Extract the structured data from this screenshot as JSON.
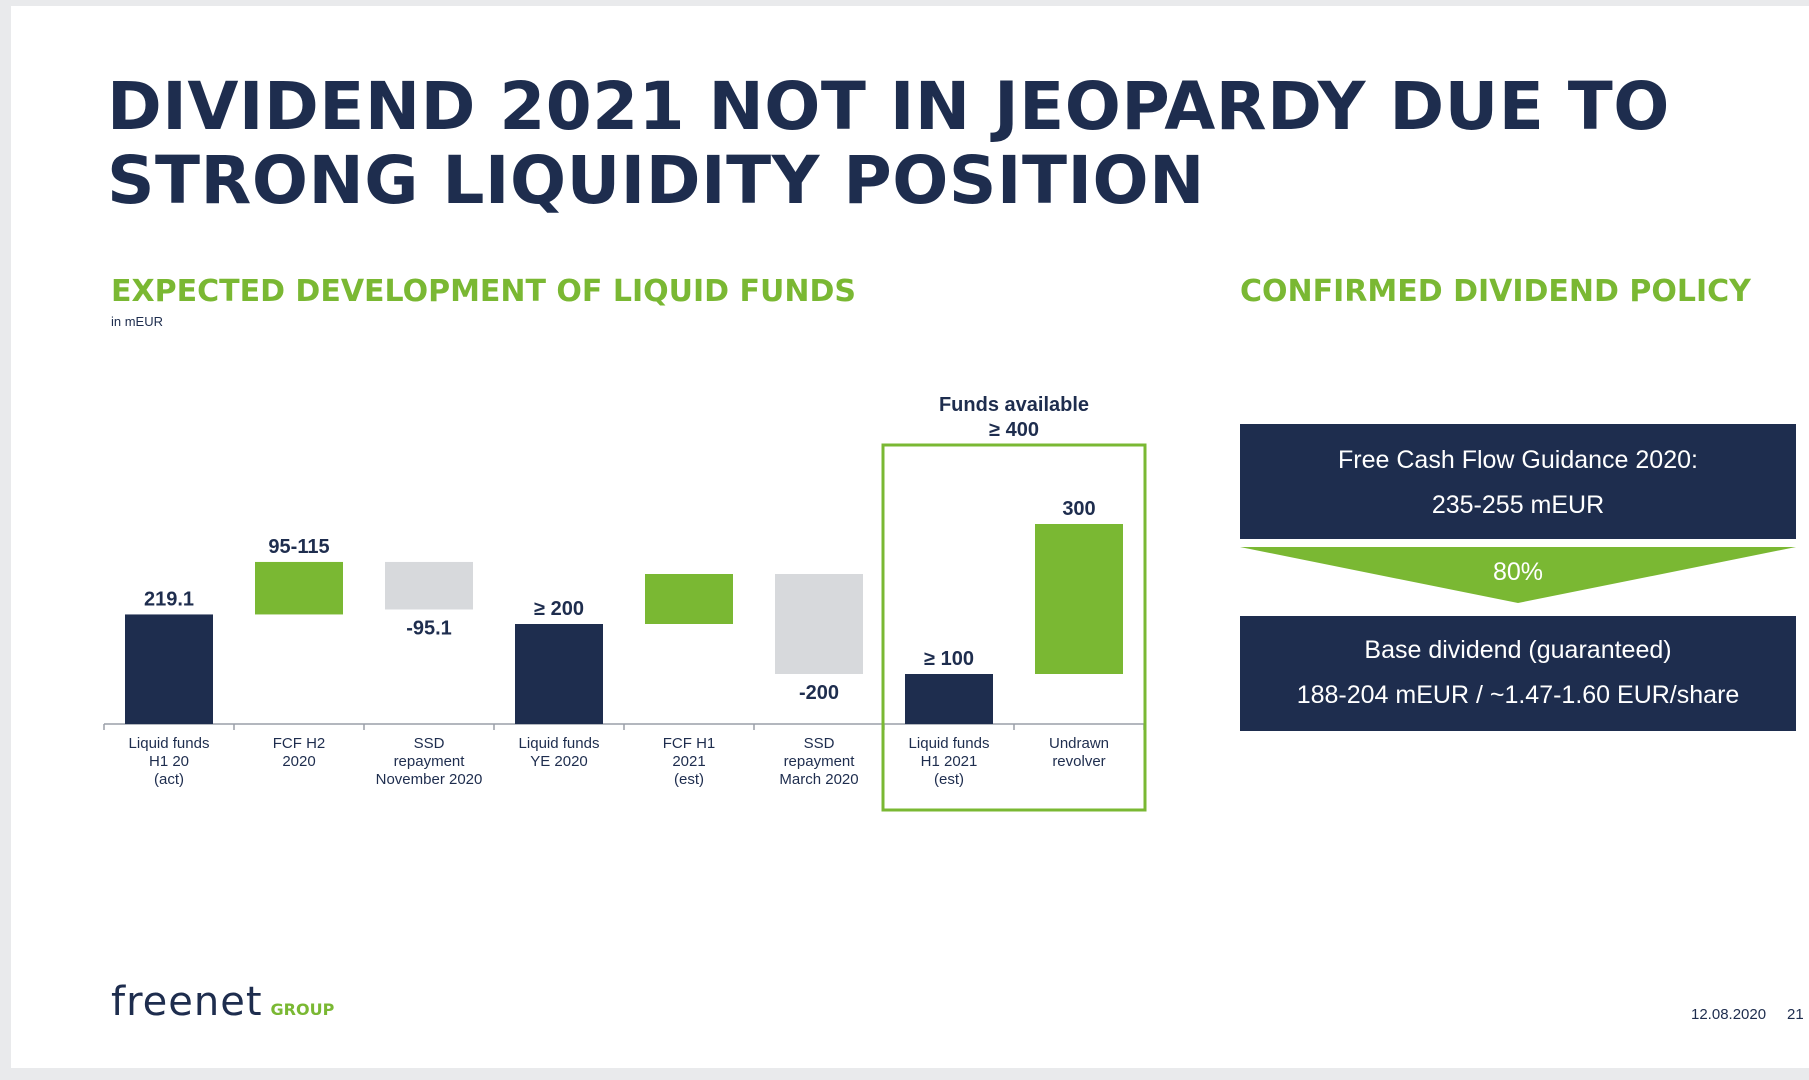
{
  "title": "Dividend 2021 not in jeopardy due to strong liquidity position",
  "chart_heading": "EXPECTED DEVELOPMENT OF LIQUID FUNDS",
  "unit_note": "in mEUR",
  "policy": {
    "heading": "CONFIRMED DIVIDEND POLICY",
    "fcf_line1": "Free Cash Flow Guidance 2020:",
    "fcf_line2": "235-255 mEUR",
    "payout": "80%",
    "base_line1": "Base dividend (guaranteed)",
    "base_line2": "188-204 mEUR / ~1.47-1.60 EUR/share"
  },
  "logo": {
    "word": "freenet",
    "group": "GROUP"
  },
  "footer": {
    "date": "12.08.2020",
    "page": "21"
  },
  "colors": {
    "navy": "#1e2d4e",
    "green": "#7ab833",
    "grey": "#d7d9dc"
  },
  "chart_data": {
    "type": "bar",
    "subtype": "waterfall",
    "unit": "mEUR",
    "grid": false,
    "categories": [
      [
        "Liquid funds",
        "H1 20",
        "(act)"
      ],
      [
        "FCF H2",
        "2020"
      ],
      [
        "SSD",
        "repayment",
        "November 2020"
      ],
      [
        "Liquid funds",
        "YE 2020"
      ],
      [
        "FCF H1",
        "2021",
        "(est)"
      ],
      [
        "SSD",
        "repayment",
        "March 2020"
      ],
      [
        "Liquid funds",
        "H1 2021",
        "(est)"
      ],
      [
        "Undrawn",
        "revolver"
      ]
    ],
    "bars": [
      {
        "kind": "total",
        "color": "navy",
        "base": 0,
        "value": 219.1,
        "label": "219.1",
        "label_pos": "above"
      },
      {
        "kind": "increase",
        "color": "green",
        "base": 219.1,
        "value": 105,
        "label": "95-115",
        "label_pos": "above"
      },
      {
        "kind": "decrease",
        "color": "grey",
        "base": 324.1,
        "value": -95.1,
        "label": "-95.1",
        "label_pos": "below"
      },
      {
        "kind": "total",
        "color": "navy",
        "base": 0,
        "value": 200,
        "label": "≥ 200",
        "label_pos": "above"
      },
      {
        "kind": "increase",
        "color": "green",
        "base": 200,
        "value": 100,
        "label": "",
        "label_pos": "none"
      },
      {
        "kind": "decrease",
        "color": "grey",
        "base": 300,
        "value": -200,
        "label": "-200",
        "label_pos": "below"
      },
      {
        "kind": "total",
        "color": "navy",
        "base": 0,
        "value": 100,
        "label": "≥ 100",
        "label_pos": "above"
      },
      {
        "kind": "increase",
        "color": "green",
        "base": 100,
        "value": 300,
        "label": "300",
        "label_pos": "above"
      }
    ],
    "highlight": {
      "from_index": 6,
      "to_index": 7,
      "label_line1": "Funds available",
      "label_line2": "≥ 400"
    }
  }
}
